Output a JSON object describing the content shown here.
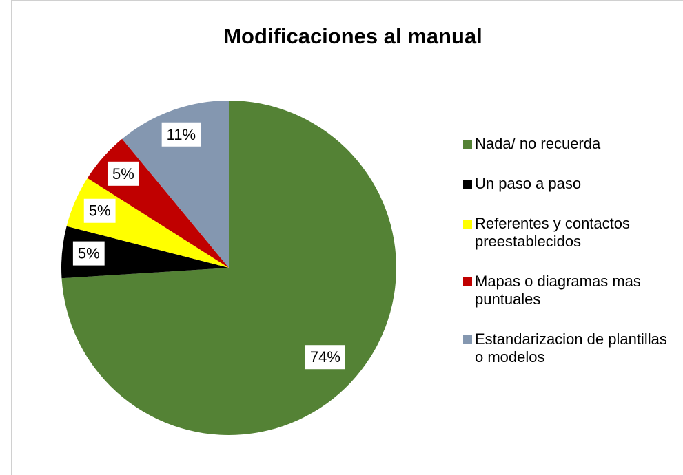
{
  "chart_data": {
    "type": "pie",
    "title": "Modificaciones al manual",
    "categories": [
      "Nada/ no recuerda",
      "Un paso a paso",
      "Referentes y contactos preestablecidos",
      "Mapas o diagramas mas puntuales",
      "Estandarizacion de plantillas o modelos"
    ],
    "values": [
      74,
      5,
      5,
      5,
      11
    ],
    "value_labels": [
      "74%",
      "5%",
      "5%",
      "5%",
      "11%"
    ],
    "colors": [
      "#548235",
      "#000000",
      "#ffff00",
      "#c00000",
      "#8497b0"
    ],
    "legend": "right"
  }
}
